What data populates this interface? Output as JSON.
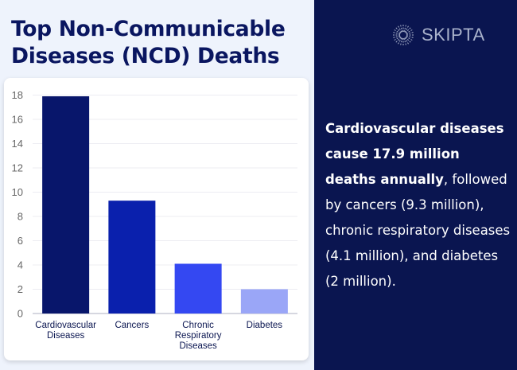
{
  "title_line1": "Top Non-Communicable",
  "title_line2": "Diseases (NCD) Deaths",
  "brand": "SKIPTA",
  "description": {
    "bold": "Cardiovascular diseases cause 17.9 million deaths annually",
    "rest": ", followed by cancers (9.3 million), chronic respiratory diseases (4.1 million), and diabetes (2 million)."
  },
  "chart_data": {
    "type": "bar",
    "categories": [
      [
        "Cardiovascular",
        "Diseases"
      ],
      [
        "Cancers"
      ],
      [
        "Chronic",
        "Respiratory",
        "Diseases"
      ],
      [
        "Diabetes"
      ]
    ],
    "values": [
      17.9,
      9.3,
      4.1,
      2
    ],
    "colors": [
      "#08166b",
      "#0a20ad",
      "#3448f2",
      "#9aa6f7"
    ],
    "ylim": [
      0,
      18
    ],
    "yticks": [
      0,
      2,
      4,
      6,
      8,
      10,
      12,
      14,
      16,
      18
    ],
    "grid": true
  }
}
